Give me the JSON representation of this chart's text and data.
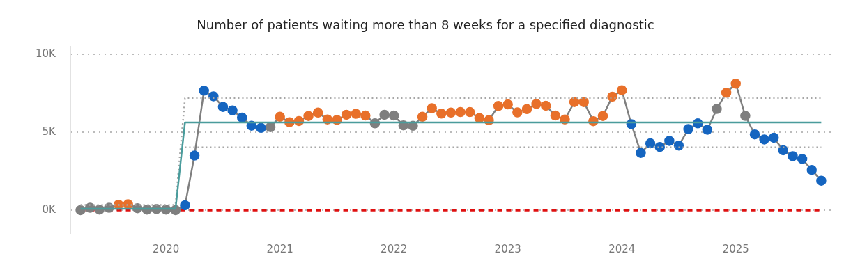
{
  "chart_data": {
    "type": "line",
    "title": "Number of patients waiting more than 8 weeks for a specified diagnostic",
    "x": [
      "2019-04",
      "2019-05",
      "2019-06",
      "2019-07",
      "2019-08",
      "2019-09",
      "2019-10",
      "2019-11",
      "2019-12",
      "2020-01",
      "2020-02",
      "2020-03",
      "2020-04",
      "2020-05",
      "2020-06",
      "2020-07",
      "2020-08",
      "2020-09",
      "2020-10",
      "2020-11",
      "2020-12",
      "2021-01",
      "2021-02",
      "2021-03",
      "2021-04",
      "2021-05",
      "2021-06",
      "2021-07",
      "2021-08",
      "2021-09",
      "2021-10",
      "2021-11",
      "2021-12",
      "2022-01",
      "2022-02",
      "2022-03",
      "2022-04",
      "2022-05",
      "2022-06",
      "2022-07",
      "2022-08",
      "2022-09",
      "2022-10",
      "2022-11",
      "2022-12",
      "2023-01",
      "2023-02",
      "2023-03",
      "2023-04",
      "2023-05",
      "2023-06",
      "2023-07",
      "2023-08",
      "2023-09",
      "2023-10",
      "2023-11",
      "2023-12",
      "2024-01",
      "2024-02",
      "2024-03",
      "2024-04",
      "2024-05",
      "2024-06",
      "2024-07",
      "2024-08",
      "2024-09",
      "2024-10",
      "2024-11",
      "2024-12",
      "2025-01",
      "2025-02",
      "2025-03",
      "2025-04",
      "2025-05",
      "2025-06",
      "2025-07",
      "2025-08",
      "2025-09",
      "2025-10"
    ],
    "series": [
      {
        "type": "line",
        "color": "#4a9c9c",
        "marker": "none",
        "line_style": "solid",
        "values": [
          100,
          100,
          100,
          100,
          100,
          100,
          100,
          100,
          100,
          100,
          100,
          5630,
          5630,
          5630,
          5630,
          5630,
          5630,
          5630,
          5630,
          5630,
          5630,
          5630,
          5630,
          5630,
          5630,
          5630,
          5630,
          5630,
          5630,
          5630,
          5630,
          5630,
          5630,
          5630,
          5630,
          5630,
          5630,
          5630,
          5630,
          5630,
          5630,
          5630,
          5630,
          5630,
          5630,
          5630,
          5630,
          5630,
          5630,
          5630,
          5630,
          5630,
          5630,
          5630,
          5630,
          5630,
          5630,
          5630,
          5630,
          5630,
          5630,
          5630,
          5630,
          5630,
          5630,
          5630,
          5630,
          5630,
          5630,
          5630,
          5630,
          5630,
          5630,
          5630,
          5630,
          5630,
          5630,
          5630,
          5630
        ]
      },
      {
        "type": "line",
        "color": "#a6a6a6",
        "marker": "none",
        "line_style": "dotted",
        "values": [
          350,
          350,
          350,
          350,
          350,
          350,
          350,
          350,
          350,
          350,
          350,
          7170,
          7170,
          7170,
          7170,
          7170,
          7170,
          7170,
          7170,
          7170,
          7170,
          7170,
          7170,
          7170,
          7170,
          7170,
          7170,
          7170,
          7170,
          7170,
          7170,
          7170,
          7170,
          7170,
          7170,
          7170,
          7170,
          7170,
          7170,
          7170,
          7170,
          7170,
          7170,
          7170,
          7170,
          7170,
          7170,
          7170,
          7170,
          7170,
          7170,
          7170,
          7170,
          7170,
          7170,
          7170,
          7170,
          7170,
          7170,
          7170,
          7170,
          7170,
          7170,
          7170,
          7170,
          7170,
          7170,
          7170,
          7170,
          7170,
          7170,
          7170,
          7170,
          7170,
          7170,
          7170,
          7170,
          7170,
          7170
        ]
      },
      {
        "type": "line",
        "color": "#a6a6a6",
        "marker": "none",
        "line_style": "dotted",
        "values": [
          null,
          null,
          null,
          null,
          null,
          null,
          null,
          null,
          null,
          null,
          null,
          4030,
          4030,
          4030,
          4030,
          4030,
          4030,
          4030,
          4030,
          4030,
          4030,
          4030,
          4030,
          4030,
          4030,
          4030,
          4030,
          4030,
          4030,
          4030,
          4030,
          4030,
          4030,
          4030,
          4030,
          4030,
          4030,
          4030,
          4030,
          4030,
          4030,
          4030,
          4030,
          4030,
          4030,
          4030,
          4030,
          4030,
          4030,
          4030,
          4030,
          4030,
          4030,
          4030,
          4030,
          4030,
          4030,
          4030,
          4030,
          4030,
          4030,
          4030,
          4030,
          4030,
          4030,
          4030,
          4030,
          4030,
          4030,
          4030,
          4030,
          4030,
          4030,
          4030,
          4030,
          4030,
          4030,
          4030,
          4030
        ]
      },
      {
        "type": "line",
        "color": "#7f7f7f",
        "marker": "circle",
        "line_style": "solid",
        "colors": [
          "#7f7f7f",
          "#7f7f7f",
          "#7f7f7f",
          "#7f7f7f",
          "#e8702a",
          "#e8702a",
          "#7f7f7f",
          "#7f7f7f",
          "#7f7f7f",
          "#7f7f7f",
          "#7f7f7f",
          "#1565c0",
          "#1565c0",
          "#1565c0",
          "#1565c0",
          "#1565c0",
          "#1565c0",
          "#1565c0",
          "#1565c0",
          "#1565c0",
          "#7f7f7f",
          "#e8702a",
          "#e8702a",
          "#e8702a",
          "#e8702a",
          "#e8702a",
          "#e8702a",
          "#e8702a",
          "#e8702a",
          "#e8702a",
          "#e8702a",
          "#7f7f7f",
          "#7f7f7f",
          "#7f7f7f",
          "#7f7f7f",
          "#7f7f7f",
          "#e8702a",
          "#e8702a",
          "#e8702a",
          "#e8702a",
          "#e8702a",
          "#e8702a",
          "#e8702a",
          "#e8702a",
          "#e8702a",
          "#e8702a",
          "#e8702a",
          "#e8702a",
          "#e8702a",
          "#e8702a",
          "#e8702a",
          "#e8702a",
          "#e8702a",
          "#e8702a",
          "#e8702a",
          "#e8702a",
          "#e8702a",
          "#e8702a",
          "#1565c0",
          "#1565c0",
          "#1565c0",
          "#1565c0",
          "#1565c0",
          "#1565c0",
          "#1565c0",
          "#1565c0",
          "#1565c0",
          "#7f7f7f",
          "#e8702a",
          "#e8702a",
          "#7f7f7f",
          "#1565c0",
          "#1565c0",
          "#1565c0",
          "#1565c0",
          "#1565c0",
          "#1565c0",
          "#1565c0",
          "#1565c0"
        ],
        "values": [
          20,
          170,
          50,
          170,
          360,
          390,
          140,
          50,
          90,
          50,
          20,
          330,
          3510,
          7660,
          7300,
          6620,
          6400,
          5940,
          5420,
          5280,
          5330,
          5990,
          5640,
          5720,
          6040,
          6260,
          5820,
          5790,
          6120,
          6180,
          6070,
          5570,
          6120,
          6070,
          5440,
          5410,
          5990,
          6540,
          6190,
          6260,
          6290,
          6290,
          5910,
          5770,
          6680,
          6780,
          6270,
          6480,
          6810,
          6700,
          6070,
          5820,
          6930,
          6930,
          5710,
          6040,
          7280,
          7690,
          5520,
          3680,
          4290,
          4060,
          4450,
          4150,
          5200,
          5570,
          5160,
          6490,
          7530,
          8110,
          6050,
          4860,
          4540,
          4650,
          3850,
          3470,
          3290,
          2590,
          1900
        ]
      }
    ],
    "ref_lines": [
      {
        "axis": "y",
        "value": 0,
        "color": "#e01010",
        "line_style": "dashed"
      }
    ],
    "xlim": [
      "2019-03",
      "2025-11"
    ],
    "xticks": [
      "2020",
      "2021",
      "2022",
      "2023",
      "2024",
      "2025"
    ],
    "ylim": [
      -1500,
      10500
    ],
    "yticks": [
      {
        "value": 0,
        "label": "0K"
      },
      {
        "value": 5000,
        "label": "5K"
      },
      {
        "value": 10000,
        "label": "10K"
      }
    ],
    "grid": "y",
    "legend": false
  }
}
